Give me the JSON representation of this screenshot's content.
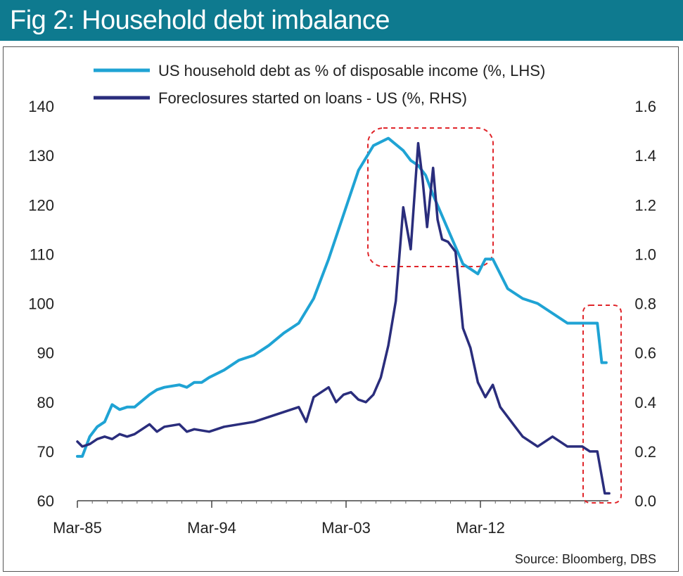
{
  "header": {
    "title": "Fig 2:  Household debt imbalance"
  },
  "source": "Source: Bloomberg, DBS",
  "colors": {
    "header_bg": "#0e7a8f",
    "debt_series": "#1fa3d4",
    "foreclosure_series": "#2a2d7c",
    "highlight_box": "#e0262b"
  },
  "chart_data": {
    "type": "line",
    "title": "Household debt imbalance",
    "x_tick_labels": [
      "Mar-85",
      "Mar-94",
      "Mar-03",
      "Mar-12"
    ],
    "x_tick_years": [
      1985.17,
      1994.17,
      2003.17,
      2012.17
    ],
    "xlim": [
      1985.17,
      2021.5
    ],
    "ylim_left": [
      60,
      140
    ],
    "yticks_left": [
      "60",
      "70",
      "80",
      "90",
      "100",
      "110",
      "120",
      "130",
      "140"
    ],
    "ylim_right": [
      0,
      1.6
    ],
    "yticks_right": [
      "0.0",
      "0.2",
      "0.4",
      "0.6",
      "0.8",
      "1.0",
      "1.2",
      "1.4",
      "1.6"
    ],
    "legend_position": "top",
    "grid": false,
    "series": [
      {
        "name": "US household debt as % of disposable income (%, LHS)",
        "axis": "left",
        "x": [
          1985.17,
          1985.5,
          1986.0,
          1986.5,
          1987.0,
          1987.5,
          1988.0,
          1988.5,
          1989.0,
          1990.0,
          1990.5,
          1991.0,
          1992.0,
          1992.5,
          1993.0,
          1993.5,
          1994.0,
          1995.0,
          1996.0,
          1997.0,
          1998.0,
          1999.0,
          2000.0,
          2001.0,
          2002.0,
          2003.0,
          2004.0,
          2005.0,
          2006.0,
          2007.0,
          2007.5,
          2008.0,
          2008.5,
          2009.0,
          2010.0,
          2011.0,
          2012.0,
          2012.5,
          2013.0,
          2014.0,
          2015.0,
          2016.0,
          2017.0,
          2018.0,
          2019.0,
          2020.0,
          2020.3,
          2020.6
        ],
        "values": [
          69,
          69,
          73,
          75,
          76,
          79.5,
          78.5,
          79,
          79,
          81.5,
          82.5,
          83,
          83.5,
          83,
          84,
          84,
          85,
          86.5,
          88.5,
          89.5,
          91.5,
          94,
          96,
          101,
          109,
          118,
          127,
          132,
          133.5,
          131,
          129,
          128,
          126,
          122,
          115,
          108,
          106,
          109,
          109,
          103,
          101,
          100,
          98,
          96,
          96,
          96,
          88,
          88
        ]
      },
      {
        "name": "Foreclosures started on loans - US (%, RHS)",
        "axis": "right",
        "x": [
          1985.17,
          1985.5,
          1986.0,
          1986.5,
          1987.0,
          1987.5,
          1988.0,
          1988.5,
          1989.0,
          1990.0,
          1990.5,
          1991.0,
          1992.0,
          1992.5,
          1993.0,
          1994.0,
          1995.0,
          1996.0,
          1997.0,
          1998.0,
          1999.0,
          2000.0,
          2000.5,
          2001.0,
          2001.5,
          2002.0,
          2002.5,
          2003.0,
          2003.5,
          2004.0,
          2004.5,
          2005.0,
          2005.5,
          2006.0,
          2006.5,
          2007.0,
          2007.5,
          2008.0,
          2008.3,
          2008.6,
          2009.0,
          2009.3,
          2009.6,
          2010.0,
          2010.5,
          2011.0,
          2011.5,
          2012.0,
          2012.5,
          2013.0,
          2013.5,
          2014.0,
          2014.5,
          2015.0,
          2016.0,
          2017.0,
          2018.0,
          2019.0,
          2019.5,
          2020.0,
          2020.5,
          2020.8
        ],
        "values": [
          0.24,
          0.22,
          0.23,
          0.25,
          0.26,
          0.25,
          0.27,
          0.26,
          0.27,
          0.31,
          0.28,
          0.3,
          0.31,
          0.28,
          0.29,
          0.28,
          0.3,
          0.31,
          0.32,
          0.34,
          0.36,
          0.38,
          0.32,
          0.42,
          0.44,
          0.46,
          0.4,
          0.43,
          0.44,
          0.41,
          0.4,
          0.43,
          0.5,
          0.63,
          0.81,
          1.19,
          1.02,
          1.45,
          1.3,
          1.11,
          1.35,
          1.14,
          1.06,
          1.05,
          1.01,
          0.7,
          0.62,
          0.48,
          0.42,
          0.47,
          0.38,
          0.34,
          0.3,
          0.26,
          0.22,
          0.26,
          0.22,
          0.22,
          0.2,
          0.2,
          0.03,
          0.03
        ]
      }
    ]
  }
}
